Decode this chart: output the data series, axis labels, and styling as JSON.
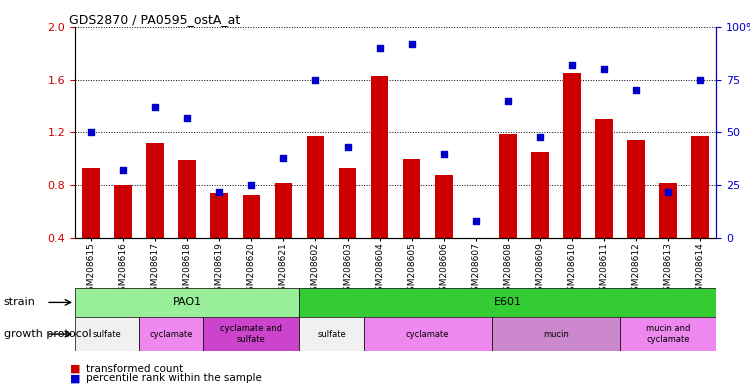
{
  "title": "GDS2870 / PA0595_ostA_at",
  "samples": [
    "GSM208615",
    "GSM208616",
    "GSM208617",
    "GSM208618",
    "GSM208619",
    "GSM208620",
    "GSM208621",
    "GSM208602",
    "GSM208603",
    "GSM208604",
    "GSM208605",
    "GSM208606",
    "GSM208607",
    "GSM208608",
    "GSM208609",
    "GSM208610",
    "GSM208611",
    "GSM208612",
    "GSM208613",
    "GSM208614"
  ],
  "transformed_count": [
    0.93,
    0.8,
    1.12,
    0.99,
    0.74,
    0.73,
    0.82,
    1.17,
    0.93,
    1.63,
    1.0,
    0.88,
    0.4,
    1.19,
    1.05,
    1.65,
    1.3,
    1.14,
    0.82,
    1.17
  ],
  "percentile_rank": [
    50,
    32,
    62,
    57,
    22,
    25,
    38,
    75,
    43,
    90,
    92,
    40,
    8,
    65,
    48,
    82,
    80,
    70,
    22,
    75
  ],
  "ylim_left": [
    0.4,
    2.0
  ],
  "ylim_right": [
    0,
    100
  ],
  "yticks_left": [
    0.4,
    0.8,
    1.2,
    1.6,
    2.0
  ],
  "yticks_right": [
    0,
    25,
    50,
    75,
    100
  ],
  "bar_color": "#cc0000",
  "dot_color": "#0000cc",
  "strain_groups": [
    {
      "label": "PAO1",
      "start": 0,
      "end": 7,
      "color": "#99ee99"
    },
    {
      "label": "E601",
      "start": 7,
      "end": 20,
      "color": "#33cc33"
    }
  ],
  "protocol_groups": [
    {
      "label": "sulfate",
      "start": 0,
      "end": 2,
      "color": "#f0f0f0"
    },
    {
      "label": "cyclamate",
      "start": 2,
      "end": 4,
      "color": "#ee88ee"
    },
    {
      "label": "cyclamate and\nsulfate",
      "start": 4,
      "end": 7,
      "color": "#cc44cc"
    },
    {
      "label": "sulfate",
      "start": 7,
      "end": 9,
      "color": "#f0f0f0"
    },
    {
      "label": "cyclamate",
      "start": 9,
      "end": 13,
      "color": "#ee88ee"
    },
    {
      "label": "mucin",
      "start": 13,
      "end": 17,
      "color": "#cc88cc"
    },
    {
      "label": "mucin and\ncyclamate",
      "start": 17,
      "end": 20,
      "color": "#ee88ee"
    }
  ],
  "legend_bar_label": "transformed count",
  "legend_dot_label": "percentile rank within the sample",
  "strain_label": "strain",
  "protocol_label": "growth protocol"
}
